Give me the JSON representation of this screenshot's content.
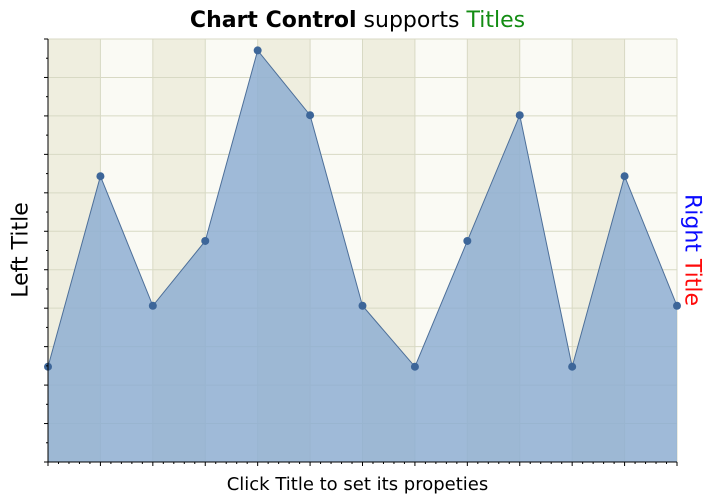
{
  "chart_data": {
    "type": "area",
    "title": {
      "part1": "Chart Control",
      "part2": " supports ",
      "part3": "Titles"
    },
    "left_title": "Left Title",
    "right_title": {
      "word1": "Right",
      "word2": "Title"
    },
    "bottom_title": "Click Title to set its propeties",
    "x": [
      0,
      1,
      2,
      3,
      4,
      5,
      6,
      7,
      8,
      9,
      10,
      11,
      12
    ],
    "values": [
      17,
      67,
      33,
      50,
      100,
      83,
      33,
      17,
      50,
      83,
      17,
      67,
      33
    ],
    "xlim": [
      0,
      12
    ],
    "ylim": [
      -8,
      103
    ],
    "grid": true,
    "colors": {
      "fill": "#8eaed2",
      "line": "#4d6f99",
      "marker": "#3d6699",
      "band_dark": "#efeedf",
      "band_light": "#fafaf4",
      "grid": "#d8d9c4"
    }
  }
}
